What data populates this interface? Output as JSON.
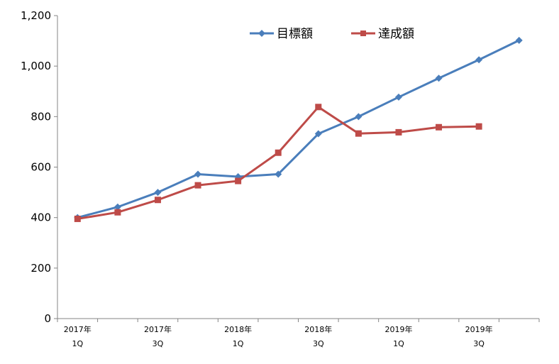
{
  "chart_data": {
    "type": "line",
    "x_ticks": [
      {
        "line1": "2017年",
        "line2": "1Q"
      },
      {
        "line1": "2017年",
        "line2": "3Q"
      },
      {
        "line1": "2018年",
        "line2": "1Q"
      },
      {
        "line1": "2018年",
        "line2": "3Q"
      },
      {
        "line1": "2019年",
        "line2": "1Q"
      },
      {
        "line1": "2019年",
        "line2": "3Q"
      }
    ],
    "y_ticks": [
      "0",
      "200",
      "400",
      "600",
      "800",
      "1,000",
      "1,200"
    ],
    "ylim": [
      0,
      1200
    ],
    "y_step": 200,
    "x_count": 12,
    "grid": false,
    "legend_position": "top-center",
    "series": [
      {
        "name": "目標額",
        "color": "#4a7ebb",
        "marker": "diamond",
        "values": [
          400,
          442,
          500,
          572,
          562,
          572,
          732,
          800,
          877,
          952,
          1025,
          1102
        ]
      },
      {
        "name": "達成額",
        "color": "#be4b48",
        "marker": "square",
        "values": [
          395,
          421,
          470,
          528,
          545,
          657,
          838,
          733,
          738,
          758,
          761,
          null
        ]
      }
    ]
  }
}
